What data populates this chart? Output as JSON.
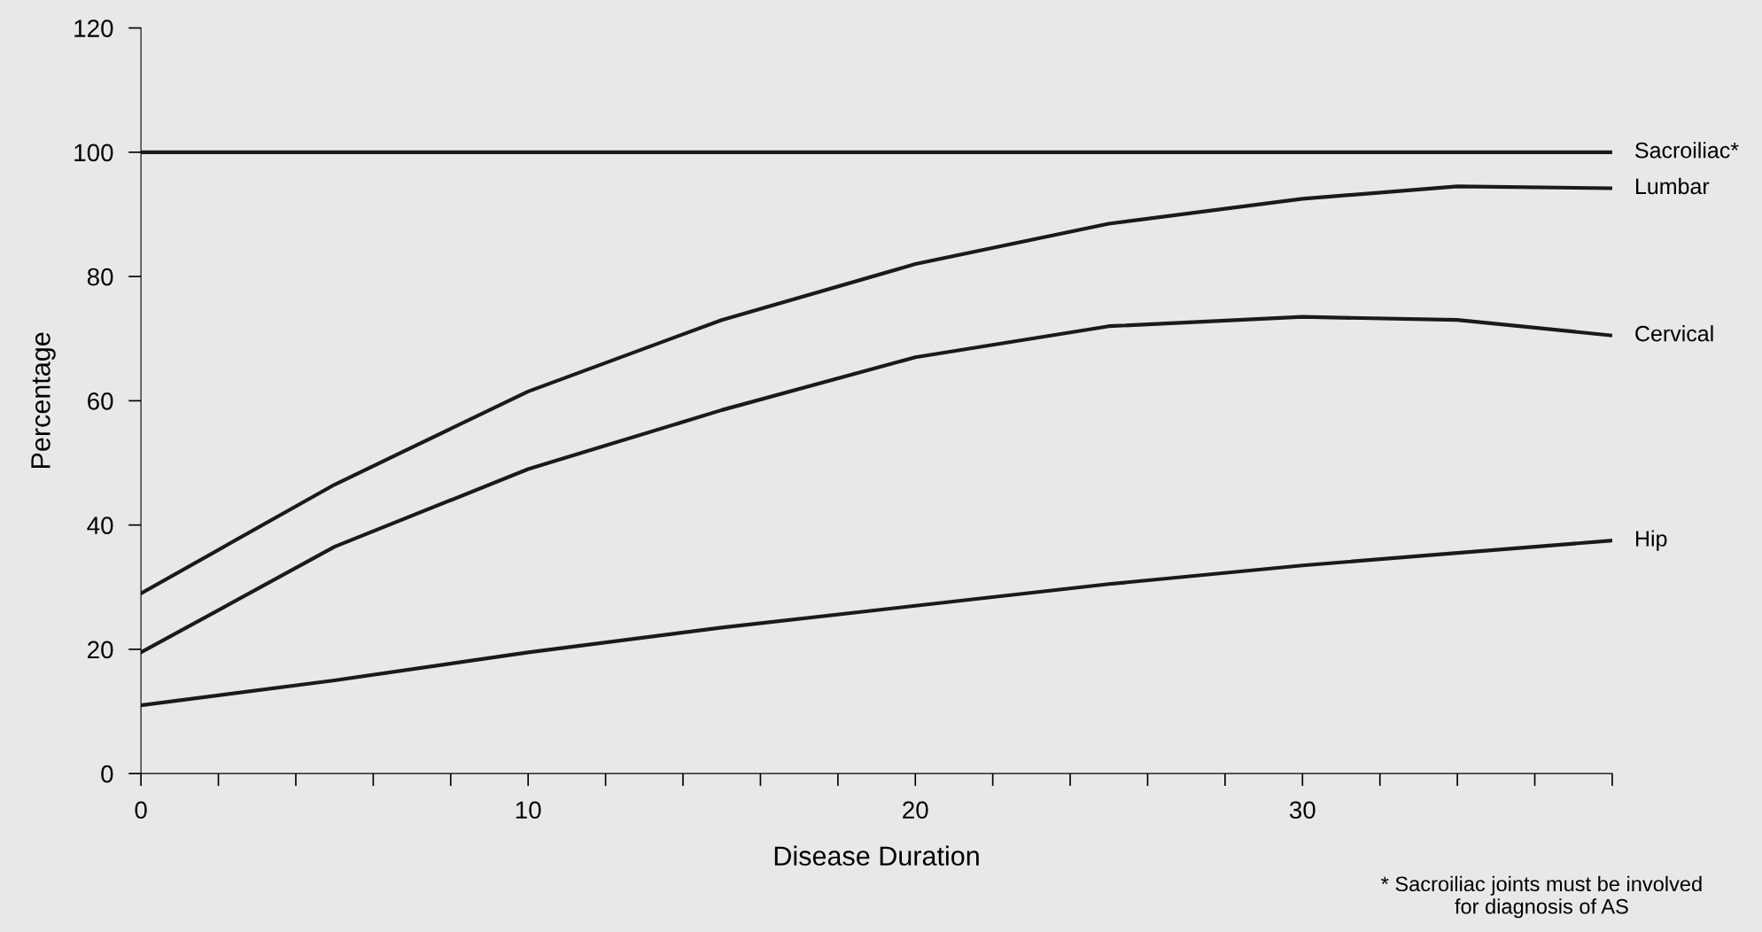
{
  "chart_data": {
    "type": "line",
    "xlabel": "Disease Duration",
    "ylabel": "Percentage",
    "xlim": [
      0,
      38
    ],
    "ylim": [
      0,
      120
    ],
    "xticks": [
      0,
      {
        "value": 2,
        "label": null
      },
      {
        "value": 4,
        "label": null
      },
      {
        "value": 6,
        "label": null
      },
      {
        "value": 8,
        "label": null
      },
      10,
      {
        "value": 12,
        "label": null
      },
      {
        "value": 14,
        "label": null
      },
      {
        "value": 16,
        "label": null
      },
      {
        "value": 18,
        "label": null
      },
      20,
      {
        "value": 22,
        "label": null
      },
      {
        "value": 24,
        "label": null
      },
      {
        "value": 26,
        "label": null
      },
      {
        "value": 28,
        "label": null
      },
      30,
      {
        "value": 32,
        "label": null
      },
      {
        "value": 34,
        "label": null
      },
      {
        "value": 36,
        "label": null
      },
      {
        "value": 38,
        "label": null
      }
    ],
    "yticks": [
      0,
      20,
      40,
      60,
      80,
      100,
      120
    ],
    "grid": false,
    "legend": false,
    "marker": "none",
    "line_style": "solid",
    "x": [
      0,
      5,
      10,
      15,
      20,
      25,
      30,
      34,
      38
    ],
    "series": [
      {
        "name": "Sacroiliac*",
        "color": "#1a1a1a",
        "values": [
          100,
          100,
          100,
          100,
          100,
          100,
          100,
          100,
          100
        ]
      },
      {
        "name": "Lumbar",
        "color": "#1a1a1a",
        "values": [
          29,
          46.5,
          61.5,
          73,
          82,
          88.5,
          92.5,
          94.5,
          94.2
        ]
      },
      {
        "name": "Cervical",
        "color": "#1a1a1a",
        "values": [
          19.5,
          36.5,
          49,
          58.5,
          67,
          72,
          73.5,
          73,
          70.5
        ]
      },
      {
        "name": "Hip",
        "color": "#1a1a1a",
        "values": [
          11,
          15,
          19.5,
          23.5,
          27,
          30.5,
          33.5,
          35.5,
          37.5
        ]
      }
    ],
    "annotations": [
      "* Sacroiliac joints must be involved\nfor diagnosis of AS"
    ]
  }
}
